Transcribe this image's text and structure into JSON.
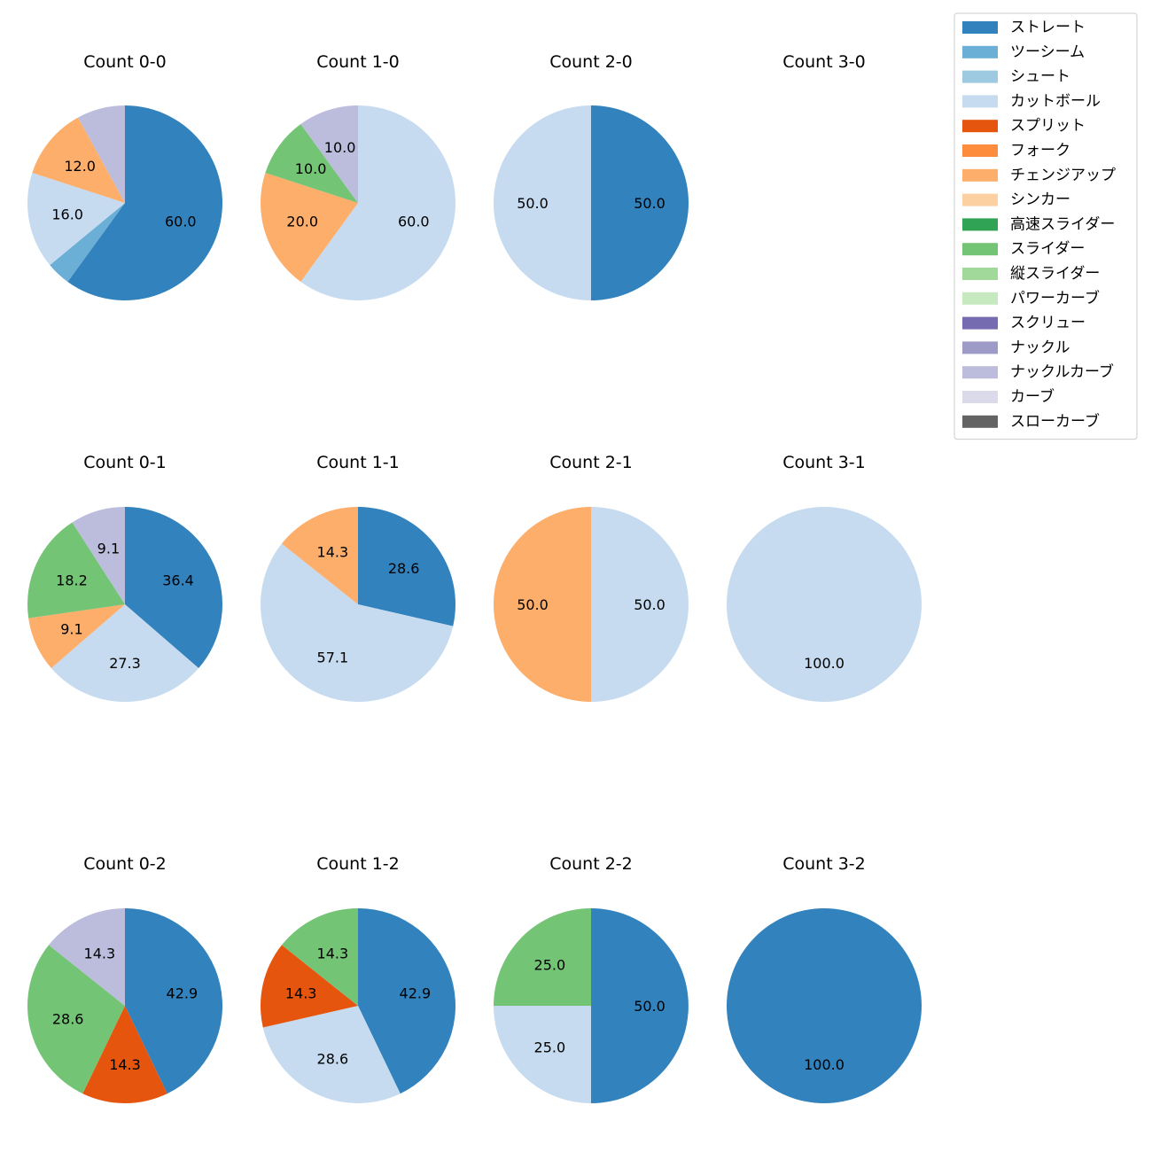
{
  "chart_data": {
    "type": "pie",
    "legend_position": "top-right",
    "categories": [
      {
        "name": "ストレート",
        "color": "#3182bd"
      },
      {
        "name": "ツーシーム",
        "color": "#6baed6"
      },
      {
        "name": "シュート",
        "color": "#9ecae1"
      },
      {
        "name": "カットボール",
        "color": "#c6dbef"
      },
      {
        "name": "スプリット",
        "color": "#e6550d"
      },
      {
        "name": "フォーク",
        "color": "#fd8d3c"
      },
      {
        "name": "チェンジアップ",
        "color": "#fdae6b"
      },
      {
        "name": "シンカー",
        "color": "#fdd0a2"
      },
      {
        "name": "高速スライダー",
        "color": "#31a354"
      },
      {
        "name": "スライダー",
        "color": "#74c476"
      },
      {
        "name": "縦スライダー",
        "color": "#a1d99b"
      },
      {
        "name": "パワーカーブ",
        "color": "#c7e9c0"
      },
      {
        "name": "スクリュー",
        "color": "#756bb1"
      },
      {
        "name": "ナックル",
        "color": "#9e9ac8"
      },
      {
        "name": "ナックルカーブ",
        "color": "#bcbddc"
      },
      {
        "name": "カーブ",
        "color": "#dadaeb"
      },
      {
        "name": "スローカーブ",
        "color": "#636363"
      }
    ],
    "charts": [
      {
        "title": "Count 0-0",
        "slices": [
          {
            "pitch": "ストレート",
            "value": 60.0,
            "label": "60.0"
          },
          {
            "pitch": "ツーシーム",
            "value": 4.0,
            "label": ""
          },
          {
            "pitch": "カットボール",
            "value": 16.0,
            "label": "16.0"
          },
          {
            "pitch": "チェンジアップ",
            "value": 12.0,
            "label": "12.0"
          },
          {
            "pitch": "ナックルカーブ",
            "value": 8.0,
            "label": ""
          }
        ]
      },
      {
        "title": "Count 1-0",
        "slices": [
          {
            "pitch": "カットボール",
            "value": 60.0,
            "label": "60.0"
          },
          {
            "pitch": "チェンジアップ",
            "value": 20.0,
            "label": "20.0"
          },
          {
            "pitch": "スライダー",
            "value": 10.0,
            "label": "10.0"
          },
          {
            "pitch": "ナックルカーブ",
            "value": 10.0,
            "label": "10.0"
          }
        ]
      },
      {
        "title": "Count 2-0",
        "slices": [
          {
            "pitch": "ストレート",
            "value": 50.0,
            "label": "50.0"
          },
          {
            "pitch": "カットボール",
            "value": 50.0,
            "label": "50.0"
          }
        ]
      },
      {
        "title": "Count 3-0",
        "slices": []
      },
      {
        "title": "Count 0-1",
        "slices": [
          {
            "pitch": "ストレート",
            "value": 36.4,
            "label": "36.4"
          },
          {
            "pitch": "カットボール",
            "value": 27.3,
            "label": "27.3"
          },
          {
            "pitch": "チェンジアップ",
            "value": 9.1,
            "label": "9.1"
          },
          {
            "pitch": "スライダー",
            "value": 18.2,
            "label": "18.2"
          },
          {
            "pitch": "ナックルカーブ",
            "value": 9.1,
            "label": "9.1"
          }
        ]
      },
      {
        "title": "Count 1-1",
        "slices": [
          {
            "pitch": "ストレート",
            "value": 28.6,
            "label": "28.6"
          },
          {
            "pitch": "カットボール",
            "value": 57.1,
            "label": "57.1"
          },
          {
            "pitch": "チェンジアップ",
            "value": 14.3,
            "label": "14.3"
          }
        ]
      },
      {
        "title": "Count 2-1",
        "slices": [
          {
            "pitch": "カットボール",
            "value": 50.0,
            "label": "50.0"
          },
          {
            "pitch": "チェンジアップ",
            "value": 50.0,
            "label": "50.0"
          }
        ]
      },
      {
        "title": "Count 3-1",
        "slices": [
          {
            "pitch": "カットボール",
            "value": 100.0,
            "label": "100.0"
          }
        ]
      },
      {
        "title": "Count 0-2",
        "slices": [
          {
            "pitch": "ストレート",
            "value": 42.9,
            "label": "42.9"
          },
          {
            "pitch": "スプリット",
            "value": 14.3,
            "label": "14.3"
          },
          {
            "pitch": "スライダー",
            "value": 28.6,
            "label": "28.6"
          },
          {
            "pitch": "ナックルカーブ",
            "value": 14.3,
            "label": "14.3"
          }
        ]
      },
      {
        "title": "Count 1-2",
        "slices": [
          {
            "pitch": "ストレート",
            "value": 42.9,
            "label": "42.9"
          },
          {
            "pitch": "カットボール",
            "value": 28.6,
            "label": "28.6"
          },
          {
            "pitch": "スプリット",
            "value": 14.3,
            "label": "14.3"
          },
          {
            "pitch": "スライダー",
            "value": 14.3,
            "label": "14.3"
          }
        ]
      },
      {
        "title": "Count 2-2",
        "slices": [
          {
            "pitch": "ストレート",
            "value": 50.0,
            "label": "50.0"
          },
          {
            "pitch": "カットボール",
            "value": 25.0,
            "label": "25.0"
          },
          {
            "pitch": "スライダー",
            "value": 25.0,
            "label": "25.0"
          }
        ]
      },
      {
        "title": "Count 3-2",
        "slices": [
          {
            "pitch": "ストレート",
            "value": 100.0,
            "label": "100.0"
          }
        ]
      }
    ]
  }
}
